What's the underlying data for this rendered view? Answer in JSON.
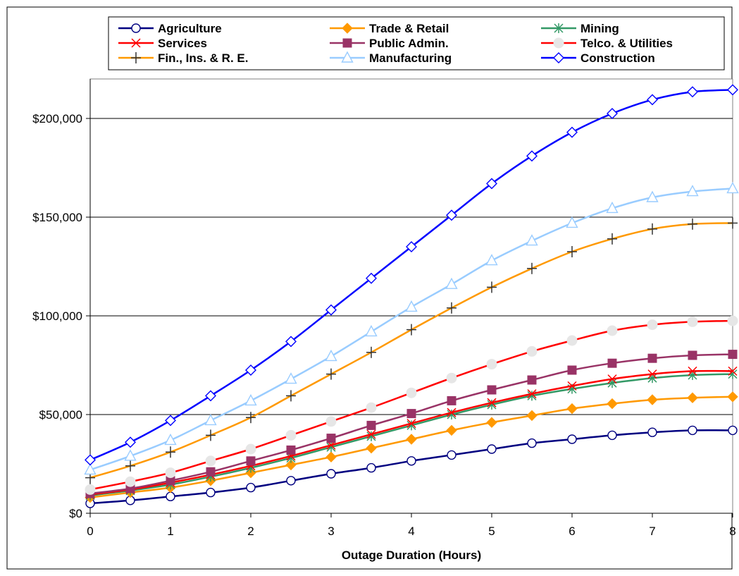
{
  "chart_data": {
    "type": "line",
    "title": "",
    "xlabel": "Outage Duration (Hours)",
    "ylabel": "",
    "xlim": [
      0,
      8
    ],
    "ylim": [
      0,
      220000
    ],
    "x_ticks": [
      "0",
      "1",
      "2",
      "3",
      "4",
      "5",
      "6",
      "7",
      "8"
    ],
    "y_ticks": [
      "$0",
      "$50,000",
      "$100,000",
      "$150,000",
      "$200,000"
    ],
    "grid": "horizontal major gridlines",
    "legend_position": "top",
    "x": [
      0,
      0.5,
      1,
      1.5,
      2,
      2.5,
      3,
      3.5,
      4,
      4.5,
      5,
      5.5,
      6,
      6.5,
      7,
      7.5,
      8
    ],
    "series": [
      {
        "name": "Agriculture",
        "color": "#000080",
        "marker": "circle",
        "values": [
          5000,
          6500,
          8500,
          10500,
          13000,
          16500,
          20000,
          23000,
          26500,
          29500,
          32500,
          35500,
          37500,
          39500,
          41000,
          42000,
          42000
        ]
      },
      {
        "name": "Trade & Retail",
        "color": "#FF9900",
        "marker": "diamond-filled",
        "values": [
          8000,
          10500,
          13000,
          16500,
          20500,
          24500,
          28500,
          33000,
          37500,
          42000,
          46000,
          49500,
          53000,
          55500,
          57500,
          58500,
          59000
        ]
      },
      {
        "name": "Mining",
        "color": "#339966",
        "marker": "asterisk",
        "values": [
          9000,
          11500,
          14500,
          18500,
          23000,
          28000,
          33500,
          39000,
          44500,
          50000,
          55000,
          59500,
          63000,
          66000,
          68500,
          70000,
          70500
        ]
      },
      {
        "name": "Services",
        "color": "#FF0000",
        "marker": "x",
        "values": [
          9500,
          12000,
          15500,
          19500,
          24000,
          29000,
          34500,
          40000,
          45500,
          51000,
          56000,
          60500,
          64500,
          68000,
          70500,
          72000,
          72000
        ]
      },
      {
        "name": "Public Admin.",
        "color": "#993366",
        "marker": "square-filled",
        "values": [
          10000,
          12500,
          16500,
          21000,
          26500,
          32000,
          38000,
          44500,
          50500,
          57000,
          62500,
          67500,
          72500,
          76000,
          78500,
          80000,
          80500
        ]
      },
      {
        "name": "Telco. & Utilities",
        "color": "#FF0000",
        "marker": "circle-light",
        "values": [
          12000,
          16000,
          20500,
          26500,
          32500,
          39500,
          46500,
          53500,
          61000,
          68500,
          75500,
          82000,
          87500,
          92500,
          95500,
          97000,
          97500
        ]
      },
      {
        "name": "Fin., Ins. & R. E.",
        "color": "#FF9900",
        "marker": "plus",
        "values": [
          18000,
          24000,
          31000,
          39500,
          48500,
          59500,
          70500,
          81500,
          93000,
          104000,
          114500,
          124000,
          132500,
          139000,
          144000,
          146500,
          147000
        ]
      },
      {
        "name": "Manufacturing",
        "color": "#99CCFF",
        "marker": "triangle",
        "values": [
          22000,
          29000,
          37000,
          47000,
          57000,
          68000,
          79500,
          92000,
          104500,
          116000,
          128000,
          138000,
          147000,
          154500,
          160000,
          163000,
          164500
        ]
      },
      {
        "name": "Construction",
        "color": "#0000FF",
        "marker": "diamond",
        "values": [
          27000,
          36000,
          47000,
          59500,
          72500,
          87000,
          103000,
          119000,
          135000,
          151000,
          167000,
          181000,
          193000,
          202500,
          209500,
          213500,
          214500
        ]
      }
    ]
  }
}
